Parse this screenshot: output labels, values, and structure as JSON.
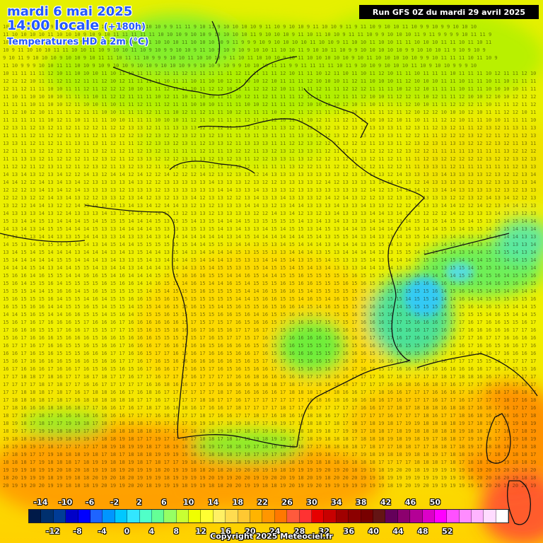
{
  "header": {
    "date": "mardi 6 mai 2025",
    "time": "14:00 locale",
    "lead": "(+180h)",
    "field": "Temperatures HD à 2m (°C)",
    "run": "Run GFS 0Z du mardi 29 avril 2025"
  },
  "legend": {
    "swatch_colors": [
      "#001a48",
      "#00306e",
      "#003c96",
      "#0000c8",
      "#0000ff",
      "#1e64ff",
      "#0096ff",
      "#00c8ff",
      "#32e6ff",
      "#50ffc8",
      "#64ff96",
      "#96ff64",
      "#c8ff32",
      "#f0ff00",
      "#ffff32",
      "#fff064",
      "#ffdc50",
      "#ffc832",
      "#ffb400",
      "#ff9600",
      "#ff7800",
      "#ff5a3c",
      "#ff3232",
      "#e60000",
      "#c80000",
      "#a00000",
      "#8c0000",
      "#780000",
      "#641414",
      "#64005a",
      "#8c006e",
      "#b40096",
      "#dc00c8",
      "#ff00ff",
      "#ff50ff",
      "#ff8cff",
      "#ffb4ff",
      "#ffdcff",
      "#ffffff"
    ],
    "top_labels": [
      "-14",
      "-10",
      "-6",
      "-2",
      "2",
      "6",
      "10",
      "14",
      "18",
      "22",
      "26",
      "30",
      "34",
      "38",
      "42",
      "46",
      "50"
    ],
    "bottom_labels": [
      "-12",
      "-8",
      "-4",
      "0",
      "4",
      "8",
      "12",
      "16",
      "20",
      "24",
      "28",
      "32",
      "36",
      "40",
      "44",
      "48",
      "52"
    ]
  },
  "copyright": "Copyright 2025 Meteociel.fr"
}
